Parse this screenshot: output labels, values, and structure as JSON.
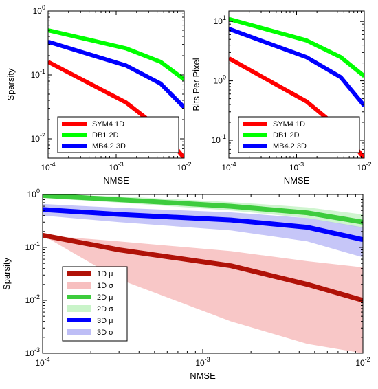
{
  "chart_data": [
    {
      "type": "line",
      "xscale": "log",
      "yscale": "log",
      "xlabel": "NMSE",
      "ylabel": "Sparsity",
      "xlim": [
        0.0001,
        0.01
      ],
      "ylim": [
        0.005,
        1
      ],
      "x_ticks": [
        "10^-4",
        "10^-3",
        "10^-2"
      ],
      "y_ticks": [
        "10^-2",
        "10^-1",
        "10^0"
      ],
      "legend_position": "bottom-left",
      "series": [
        {
          "name": "SYM4 1D",
          "color": "#ff0000",
          "x": [
            0.0001,
            0.0014,
            0.0045,
            0.01
          ],
          "y": [
            0.16,
            0.037,
            0.014,
            0.005
          ]
        },
        {
          "name": "DB1 2D",
          "color": "#00ff00",
          "x": [
            0.0001,
            0.0014,
            0.0045,
            0.01
          ],
          "y": [
            0.5,
            0.26,
            0.16,
            0.085
          ]
        },
        {
          "name": "MB4.2 3D",
          "color": "#0000ff",
          "x": [
            0.0001,
            0.0014,
            0.0045,
            0.01
          ],
          "y": [
            0.33,
            0.14,
            0.073,
            0.031
          ]
        }
      ]
    },
    {
      "type": "line",
      "xscale": "log",
      "yscale": "log",
      "xlabel": "NMSE",
      "ylabel": "Bits Per Pixel",
      "xlim": [
        0.0001,
        0.01
      ],
      "ylim": [
        0.05,
        15
      ],
      "x_ticks": [
        "10^-4",
        "10^-3",
        "10^-2"
      ],
      "y_ticks": [
        "10^-1",
        "10^0",
        "10^1"
      ],
      "legend_position": "bottom-left",
      "series": [
        {
          "name": "SYM4 1D",
          "color": "#ff0000",
          "x": [
            0.0001,
            0.0014,
            0.0045,
            0.01
          ],
          "y": [
            2.4,
            0.45,
            0.15,
            0.05
          ]
        },
        {
          "name": "DB1 2D",
          "color": "#00ff00",
          "x": [
            0.0001,
            0.0014,
            0.0045,
            0.01
          ],
          "y": [
            11,
            4.8,
            2.5,
            1.2
          ]
        },
        {
          "name": "MB4.2 3D",
          "color": "#0000ff",
          "x": [
            0.0001,
            0.0014,
            0.0045,
            0.01
          ],
          "y": [
            7.5,
            2.5,
            1.15,
            0.38
          ]
        }
      ]
    },
    {
      "type": "area",
      "xscale": "log",
      "yscale": "log",
      "xlabel": "NMSE",
      "ylabel": "Sparsity",
      "xlim": [
        0.0001,
        0.01
      ],
      "ylim": [
        0.001,
        1
      ],
      "x_ticks": [
        "10^-4",
        "10^-3",
        "10^-2"
      ],
      "y_ticks": [
        "10^-3",
        "10^-2",
        "10^-1",
        "10^0"
      ],
      "legend_position": "bottom-left",
      "series": [
        {
          "name": "1D μ",
          "kind": "line",
          "color": "#b01208",
          "x": [
            0.0001,
            0.0003,
            0.0015,
            0.0045,
            0.01
          ],
          "y": [
            0.17,
            0.09,
            0.045,
            0.02,
            0.01
          ]
        },
        {
          "name": "1D σ",
          "kind": "band",
          "color": "#f6b4b4",
          "x": [
            0.0001,
            0.0003,
            0.0015,
            0.0045,
            0.01
          ],
          "lower": [
            0.17,
            0.025,
            0.004,
            0.0015,
            0.001
          ],
          "upper": [
            0.17,
            0.13,
            0.085,
            0.055,
            0.042
          ]
        },
        {
          "name": "2D μ",
          "kind": "line",
          "color": "#3dcc3d",
          "x": [
            0.0001,
            0.0003,
            0.0015,
            0.0045,
            0.01
          ],
          "y": [
            0.96,
            0.8,
            0.6,
            0.45,
            0.3
          ]
        },
        {
          "name": "2D σ",
          "kind": "band",
          "color": "#bff2bf",
          "x": [
            0.0001,
            0.0003,
            0.0015,
            0.0045,
            0.01
          ],
          "lower": [
            0.86,
            0.7,
            0.5,
            0.36,
            0.23
          ],
          "upper": [
            1.0,
            0.92,
            0.72,
            0.57,
            0.42
          ]
        },
        {
          "name": "3D μ",
          "kind": "line",
          "color": "#0000ff",
          "x": [
            0.0001,
            0.0003,
            0.0015,
            0.0045,
            0.01
          ],
          "y": [
            0.52,
            0.42,
            0.33,
            0.24,
            0.14
          ]
        },
        {
          "name": "3D σ",
          "kind": "band",
          "color": "#b3b3f5",
          "x": [
            0.0001,
            0.0003,
            0.0015,
            0.0045,
            0.01
          ],
          "lower": [
            0.4,
            0.3,
            0.21,
            0.13,
            0.065
          ],
          "upper": [
            0.66,
            0.56,
            0.46,
            0.36,
            0.24
          ]
        }
      ]
    }
  ]
}
